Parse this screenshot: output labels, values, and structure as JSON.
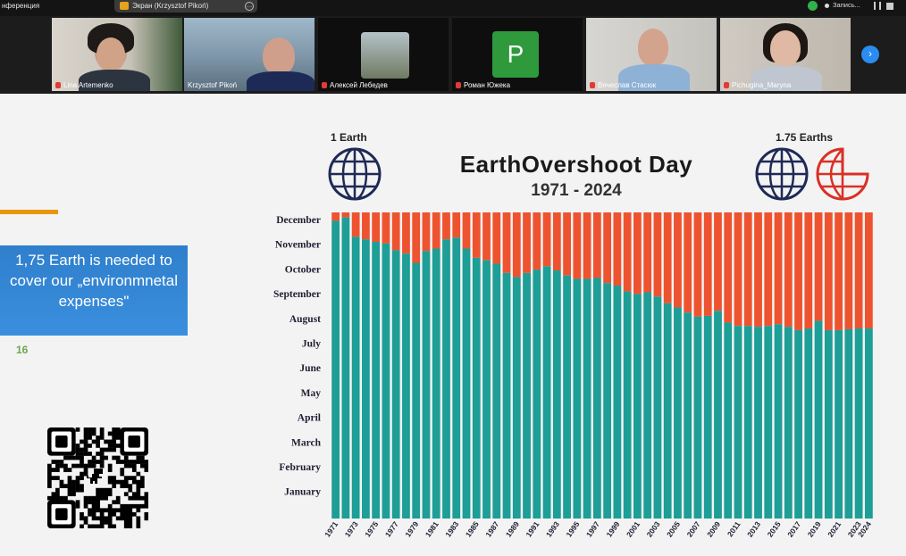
{
  "topbar": {
    "app_title": "нференция",
    "share_label": "Экран (Krzysztof Pikoń)",
    "recording_label": "Запись..."
  },
  "participants": [
    {
      "name": "Lina Artemenko"
    },
    {
      "name": "Krzysztof Pikoń"
    },
    {
      "name": "Алексей Лебедев"
    },
    {
      "name": "Роман Южека",
      "avatar_letter": "P"
    },
    {
      "name": "Вячеслав Стасюк"
    },
    {
      "name": "Pichugina_Maryna"
    }
  ],
  "slide": {
    "bluebox_text": "1,75 Earth is needed to cover our „environmnetal expenses\"",
    "slide_number": "16"
  },
  "chart_data": {
    "type": "bar",
    "title": "EarthOvershoot Day",
    "subtitle": "1971 - 2024",
    "left_icon_label": "1 Earth",
    "right_icon_label": "1.75 Earths",
    "y_labels": [
      "December",
      "November",
      "October",
      "September",
      "August",
      "July",
      "June",
      "May",
      "April",
      "March",
      "February",
      "January"
    ],
    "x_tick_labels": [
      "1971",
      "1973",
      "1975",
      "1977",
      "1979",
      "1981",
      "1983",
      "1985",
      "1987",
      "1989",
      "1991",
      "1993",
      "1995",
      "1997",
      "1999",
      "2001",
      "2003",
      "2005",
      "2007",
      "2009",
      "2011",
      "2013",
      "2015",
      "2017",
      "2019",
      "2021",
      "2023",
      "2024"
    ],
    "years": [
      1971,
      1972,
      1973,
      1974,
      1975,
      1976,
      1977,
      1978,
      1979,
      1980,
      1981,
      1982,
      1983,
      1984,
      1985,
      1986,
      1987,
      1988,
      1989,
      1990,
      1991,
      1992,
      1993,
      1994,
      1995,
      1996,
      1997,
      1998,
      1999,
      2000,
      2001,
      2002,
      2003,
      2004,
      2005,
      2006,
      2007,
      2008,
      2009,
      2010,
      2011,
      2012,
      2013,
      2014,
      2015,
      2016,
      2017,
      2018,
      2019,
      2020,
      2021,
      2022,
      2023,
      2024
    ],
    "overshoot_day_of_year": [
      355,
      359,
      336,
      333,
      330,
      328,
      320,
      316,
      305,
      319,
      322,
      333,
      335,
      322,
      311,
      308,
      304,
      293,
      288,
      293,
      297,
      301,
      296,
      290,
      286,
      286,
      287,
      281,
      278,
      271,
      268,
      270,
      265,
      257,
      252,
      246,
      241,
      242,
      248,
      234,
      230,
      230,
      229,
      230,
      232,
      229,
      225,
      227,
      236,
      225,
      225,
      226,
      227,
      227
    ],
    "series": [
      {
        "name": "",
        "color": "#1d9e96"
      },
      {
        "name": "",
        "color": "#ee5330"
      }
    ],
    "ylim": [
      1,
      365
    ]
  }
}
